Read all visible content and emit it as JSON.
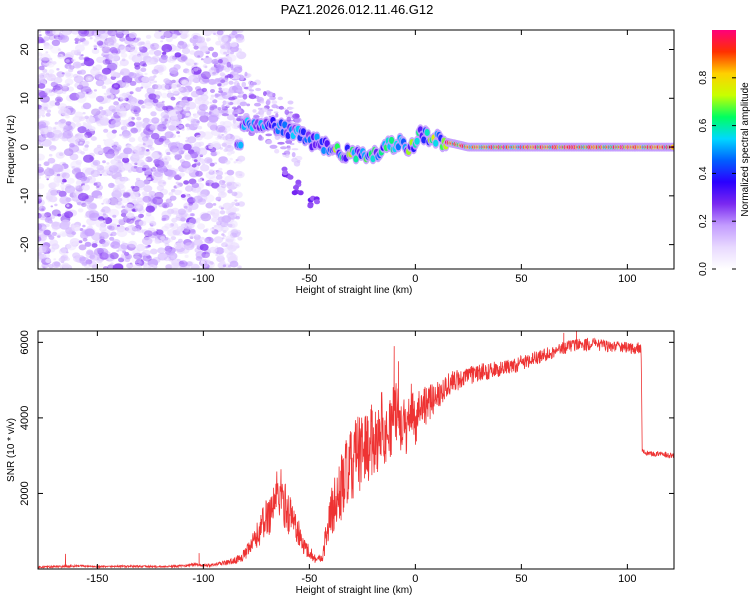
{
  "page_title": "PAZ1.2026.012.11.46.G12",
  "chart_data": [
    {
      "type": "heatmap",
      "title": "PAZ1.2026.012.11.46.G12",
      "xlabel": "Height of straight line (km)",
      "ylabel": "Frequency (Hz)",
      "xlim": [
        -178,
        122
      ],
      "ylim": [
        -25,
        24
      ],
      "xticks": [
        -150,
        -100,
        -50,
        0,
        50,
        100
      ],
      "yticks": [
        -20,
        -10,
        0,
        10,
        20
      ],
      "xtick_labels": [
        "-150",
        "-100",
        "-50",
        "0",
        "50",
        "100"
      ],
      "ytick_labels": [
        "-20",
        "-10",
        "0",
        "10",
        "20"
      ],
      "colorbar": {
        "label": "Normalized spectral amplitude",
        "range": [
          0,
          1
        ],
        "ticks": [
          "0.0",
          "0.2",
          "0.4",
          "0.6",
          "0.8"
        ],
        "tick_values": [
          0.0,
          0.2,
          0.4,
          0.6,
          0.8
        ],
        "colormap": [
          "#ffffff",
          "#e8d9ff",
          "#c39cff",
          "#7a28f0",
          "#2a00ff",
          "#0060ff",
          "#00d8ff",
          "#00ff60",
          "#c8ff00",
          "#ffd000",
          "#ff3000",
          "#ff007a"
        ]
      },
      "ridge": {
        "description_points": [
          [
            -82,
            4
          ],
          [
            -70,
            5
          ],
          [
            -60,
            3.5
          ],
          [
            -50,
            1.5
          ],
          [
            -42,
            0
          ],
          [
            -35,
            -1.5
          ],
          [
            -28,
            -1.2
          ],
          [
            -20,
            -1.6
          ],
          [
            -14,
            0.5
          ],
          [
            -8,
            0.8
          ],
          [
            -2,
            0
          ],
          [
            2,
            2.5
          ],
          [
            8,
            2
          ],
          [
            15,
            1
          ],
          [
            25,
            0
          ],
          [
            60,
            0
          ],
          [
            100,
            0
          ],
          [
            122,
            0
          ]
        ],
        "branch_points": [
          [
            -60,
            -5
          ],
          [
            -55,
            -8
          ],
          [
            -48,
            -12
          ]
        ]
      }
    },
    {
      "type": "line",
      "title": "",
      "xlabel": "Height of straight line (km)",
      "ylabel": "SNR (10 * v/v)",
      "xlim": [
        -178,
        122
      ],
      "ylim": [
        0,
        6300
      ],
      "xticks": [
        -150,
        -100,
        -50,
        0,
        50,
        100
      ],
      "yticks": [
        2000,
        4000,
        6000
      ],
      "xtick_labels": [
        "-150",
        "-100",
        "-50",
        "0",
        "50",
        "100"
      ],
      "ytick_labels": [
        "2000",
        "4000",
        "6000"
      ],
      "series": [
        {
          "name": "SNR",
          "color": "#ee3333",
          "x": [
            -178,
            -170,
            -162,
            -156,
            -150,
            -140,
            -130,
            -120,
            -110,
            -104,
            -100,
            -95,
            -90,
            -85,
            -80,
            -77,
            -74,
            -71,
            -68,
            -66,
            -64,
            -62,
            -60,
            -58,
            -56,
            -54,
            -52,
            -50,
            -48,
            -46,
            -44,
            -42,
            -40,
            -38,
            -36,
            -34,
            -32,
            -30,
            -28,
            -26,
            -24,
            -22,
            -20,
            -18,
            -16,
            -14,
            -12,
            -10,
            -8,
            -6,
            -4,
            -2,
            0,
            2,
            4,
            6,
            8,
            10,
            12,
            14,
            16,
            18,
            20,
            22,
            25,
            30,
            35,
            40,
            45,
            50,
            55,
            60,
            65,
            70,
            75,
            80,
            85,
            90,
            95,
            100,
            104,
            106.5,
            107,
            108,
            110,
            115,
            120,
            122
          ],
          "values": [
            50,
            60,
            70,
            80,
            60,
            70,
            70,
            60,
            80,
            120,
            90,
            110,
            160,
            220,
            400,
            650,
            950,
            1300,
            1550,
            1900,
            2050,
            1750,
            1500,
            1350,
            1100,
            750,
            550,
            480,
            300,
            250,
            300,
            900,
            1400,
            1750,
            1900,
            2400,
            2500,
            2700,
            3100,
            3000,
            3300,
            3200,
            3500,
            3400,
            3900,
            3500,
            3700,
            4200,
            4000,
            3800,
            3700,
            4300,
            3900,
            4300,
            4400,
            4300,
            4500,
            4600,
            4700,
            4800,
            4900,
            4950,
            5000,
            5050,
            5100,
            5200,
            5250,
            5300,
            5350,
            5450,
            5550,
            5650,
            5750,
            5850,
            5950,
            5950,
            5950,
            5900,
            5900,
            5850,
            5850,
            5850,
            3100,
            3100,
            3050,
            3050,
            3000,
            3000
          ],
          "noise_amplitude": [
            20,
            25,
            30,
            25,
            20,
            25,
            25,
            20,
            30,
            40,
            35,
            45,
            60,
            90,
            160,
            260,
            380,
            520,
            620,
            700,
            750,
            650,
            600,
            520,
            430,
            300,
            220,
            200,
            130,
            110,
            130,
            450,
            650,
            800,
            850,
            1000,
            1000,
            1000,
            1050,
            1000,
            1000,
            950,
            950,
            900,
            900,
            850,
            850,
            850,
            800,
            750,
            700,
            700,
            650,
            600,
            550,
            500,
            450,
            400,
            380,
            350,
            330,
            310,
            290,
            270,
            250,
            230,
            220,
            210,
            200,
            200,
            190,
            180,
            180,
            170,
            170,
            170,
            160,
            160,
            150,
            150,
            150,
            150,
            70,
            70,
            70,
            70,
            70,
            70
          ],
          "spikes": [
            [
              -165,
              400
            ],
            [
              -102,
              420
            ],
            [
              -10,
              5900
            ],
            [
              -8,
              5500
            ],
            [
              70,
              6250
            ],
            [
              76,
              6300
            ]
          ]
        }
      ]
    }
  ]
}
